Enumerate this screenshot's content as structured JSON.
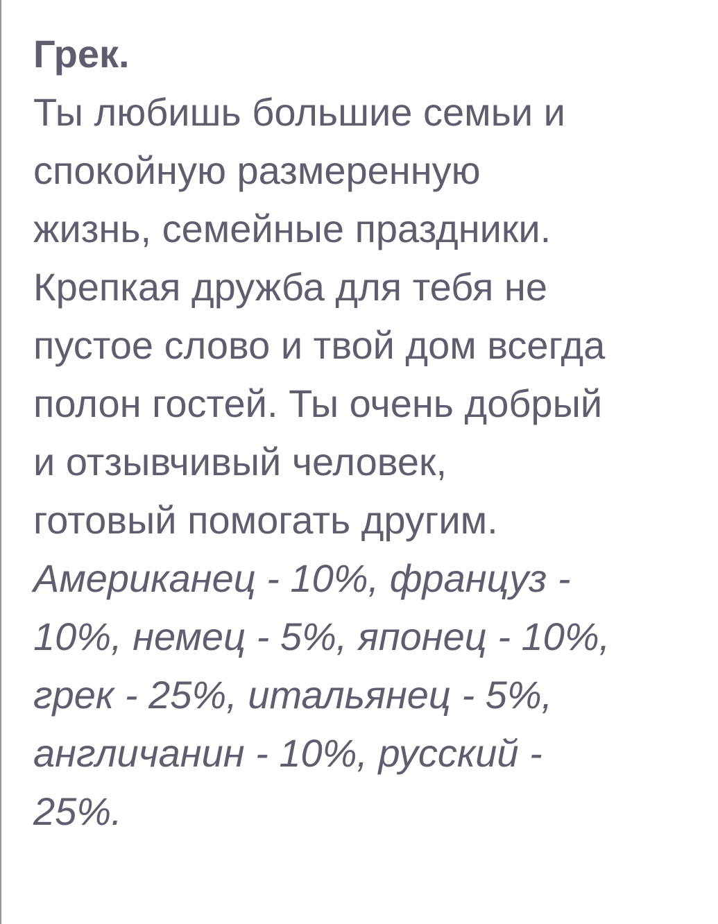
{
  "title": "Грек.",
  "description_lines": [
    "Ты любишь большие семьи и",
    "спокойную размеренную",
    "жизнь, семейные праздники.",
    "Крепкая дружба для тебя не",
    "пустое слово и твой дом всегда",
    "полон гостей. Ты очень добрый",
    "и отзывчивый человек,",
    "готовый помогать другим."
  ],
  "result_lines": [
    "Американец - 10%, француз -",
    "10%, немец - 5%, японец - 10%,",
    "грек - 25%, итальянец - 5%,",
    "англичанин - 10%, русский -",
    "25%."
  ],
  "colors": {
    "text": "#5f5e6e",
    "background": "#ffffff"
  }
}
